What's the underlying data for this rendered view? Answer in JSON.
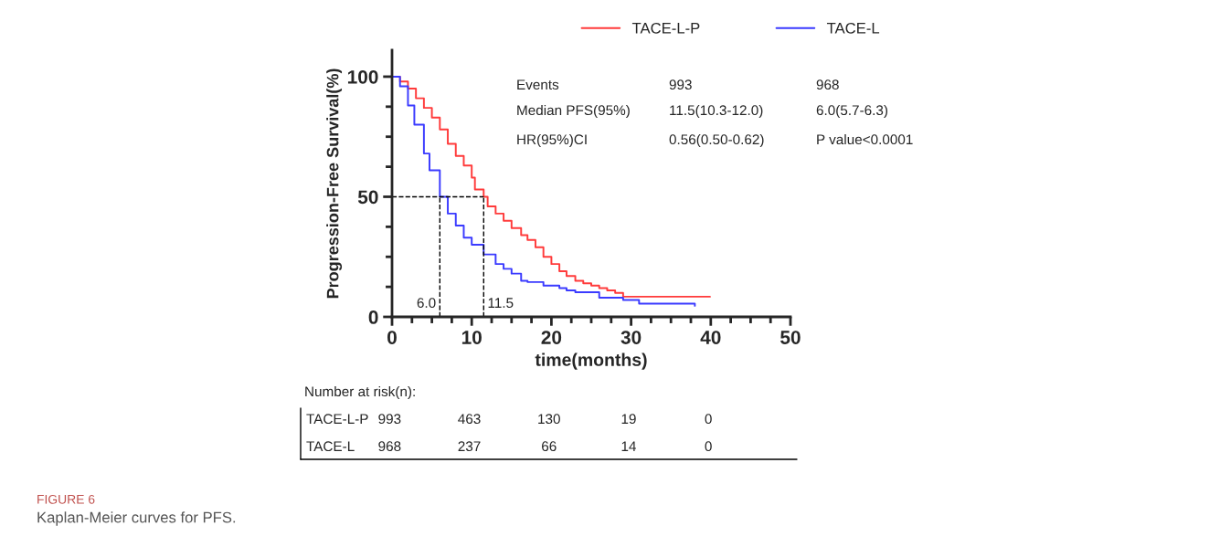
{
  "chart_data": {
    "type": "step",
    "title": "FIGURE 6",
    "subtitle": "Kaplan-Meier curves for PFS.",
    "xlabel": "time(months)",
    "ylabel": "Progression-Free Survival(%)",
    "xlim": [
      0,
      50
    ],
    "xticks": [
      0,
      10,
      20,
      30,
      40,
      50
    ],
    "ylim": [
      0,
      111
    ],
    "yticks": [
      0,
      50,
      100
    ],
    "legend": "top",
    "grid": false,
    "line_style": "solid",
    "marker": "none",
    "series": [
      {
        "name": "TACE-L-P",
        "color": "#ff3b3b",
        "x": [
          0,
          1,
          2,
          3,
          4,
          5,
          6,
          7,
          8,
          9,
          10,
          10.4,
          11.5,
          12,
          13,
          14,
          15,
          16.2,
          17,
          18,
          19,
          20,
          21,
          21.9,
          23,
          24,
          25,
          26,
          27,
          28,
          29,
          39.9
        ],
        "values": [
          100,
          98,
          95,
          91,
          87,
          83,
          78,
          72,
          67,
          63,
          58,
          53,
          50,
          46,
          43,
          40,
          37,
          34,
          32,
          29,
          25,
          22,
          19,
          17,
          15,
          14,
          13,
          12,
          11,
          10,
          8.4,
          8.4
        ]
      },
      {
        "name": "TACE-L",
        "color": "#3b3bff",
        "x": [
          0,
          1,
          2,
          2.8,
          4,
          4.7,
          6,
          7,
          8,
          9,
          10,
          11.5,
          13,
          14,
          15,
          16.2,
          17,
          19,
          21,
          21.9,
          23,
          26,
          29,
          31,
          38
        ],
        "values": [
          100,
          96,
          88,
          80,
          68,
          61,
          50,
          43,
          38,
          33,
          30,
          26,
          22,
          20,
          18,
          15,
          14.5,
          13,
          12,
          11,
          10.3,
          8,
          7,
          5.5,
          4.6
        ]
      }
    ],
    "ref_lines": [
      {
        "axis": "y",
        "value": 50,
        "line_style": "dashed",
        "color": "#000000"
      },
      {
        "axis": "x",
        "value": 6.0,
        "label": "6.0",
        "line_style": "dashed",
        "color": "#000000"
      },
      {
        "axis": "x",
        "value": 11.5,
        "label": "11.5",
        "line_style": "dashed",
        "color": "#000000"
      }
    ],
    "annotations": [
      "Events",
      "993",
      "968",
      "Median PFS(95%)",
      "11.5(10.3-12.0)",
      "6.0(5.7-6.3)",
      "HR(95%)CI",
      "0.56(0.50-0.62)",
      "P value<0.0001",
      "Number at risk(n):",
      "TACE-L-P",
      "993",
      "463",
      "130",
      "19",
      "0",
      "TACE-L",
      "968",
      "237",
      "66",
      "14",
      "0"
    ]
  }
}
